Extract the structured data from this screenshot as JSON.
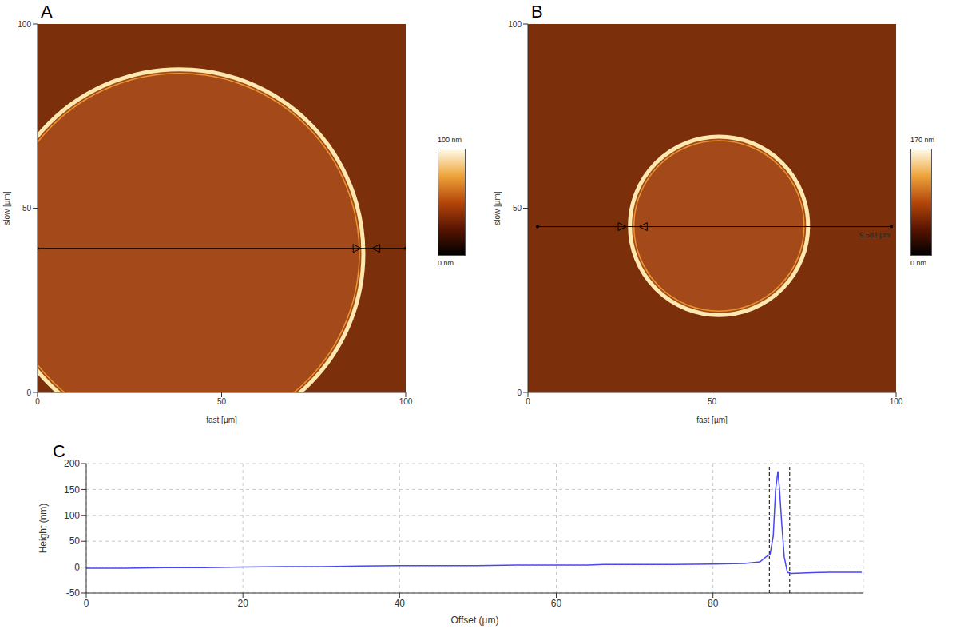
{
  "chart_data": [
    {
      "type": "image",
      "label": "A",
      "x_label": "fast [µm]",
      "y_label": "slow [µm]",
      "xlim": [
        0,
        100
      ],
      "ylim": [
        0,
        100
      ],
      "xticks": [
        0,
        50,
        100
      ],
      "yticks": [
        0,
        50,
        100
      ],
      "disc": {
        "center": [
          38.5,
          37.7
        ],
        "radius": 50
      },
      "profile": {
        "x": [
          0,
          100
        ],
        "y": 39.1,
        "markers": [
          86.8,
          91.9
        ]
      },
      "colorbar": {
        "range": [
          0,
          100
        ],
        "ticks": [
          {
            "value": 0,
            "label": "0 nm"
          },
          {
            "value": 100,
            "label": "100 nm"
          }
        ]
      }
    },
    {
      "type": "image",
      "label": "B",
      "x_label": "fast [µm]",
      "y_label": "slow [µm]",
      "xlim": [
        0,
        100
      ],
      "ylim": [
        0,
        100
      ],
      "xticks": [
        0,
        50,
        100
      ],
      "yticks": [
        0,
        50,
        100
      ],
      "disc": {
        "center": [
          51.9,
          45.2
        ],
        "radius": 24.2
      },
      "profile": {
        "x": [
          2.6,
          98.7
        ],
        "y": 45,
        "markers": [
          25.6,
          31.3
        ]
      },
      "profile_label": "9.582 µm",
      "colorbar": {
        "range": [
          0,
          170
        ],
        "ticks": [
          {
            "value": 0,
            "label": "0 nm"
          },
          {
            "value": 170,
            "label": "170 nm"
          }
        ]
      }
    },
    {
      "type": "line",
      "label": "C",
      "x_label": "Offset (µm)",
      "y_label": "Height (nm)",
      "x": [
        0,
        5,
        10,
        15,
        20,
        25,
        30,
        35,
        40,
        45,
        50,
        55,
        60,
        64,
        66,
        70,
        75,
        80,
        84,
        86,
        86.8,
        87.3,
        87.7,
        88.0,
        88.3,
        88.5,
        88.8,
        89.1,
        89.5,
        90,
        92,
        95,
        99
      ],
      "values": [
        -2,
        -2,
        -1,
        -1,
        0,
        1,
        1,
        2,
        3,
        3,
        3,
        4,
        4,
        4,
        5,
        5,
        5,
        6,
        7,
        10,
        20,
        25,
        60,
        150,
        185,
        150,
        80,
        20,
        -10,
        -12,
        -11,
        -10,
        -10
      ],
      "color": "#4848f0",
      "xlim": [
        0,
        99.2
      ],
      "xticks": [
        0,
        20,
        40,
        60,
        80
      ],
      "ylim": [
        -50,
        200
      ],
      "yticks": [
        -50,
        0,
        50,
        100,
        150,
        200
      ],
      "grid": true,
      "cursors": [
        87.2,
        89.8
      ]
    }
  ]
}
